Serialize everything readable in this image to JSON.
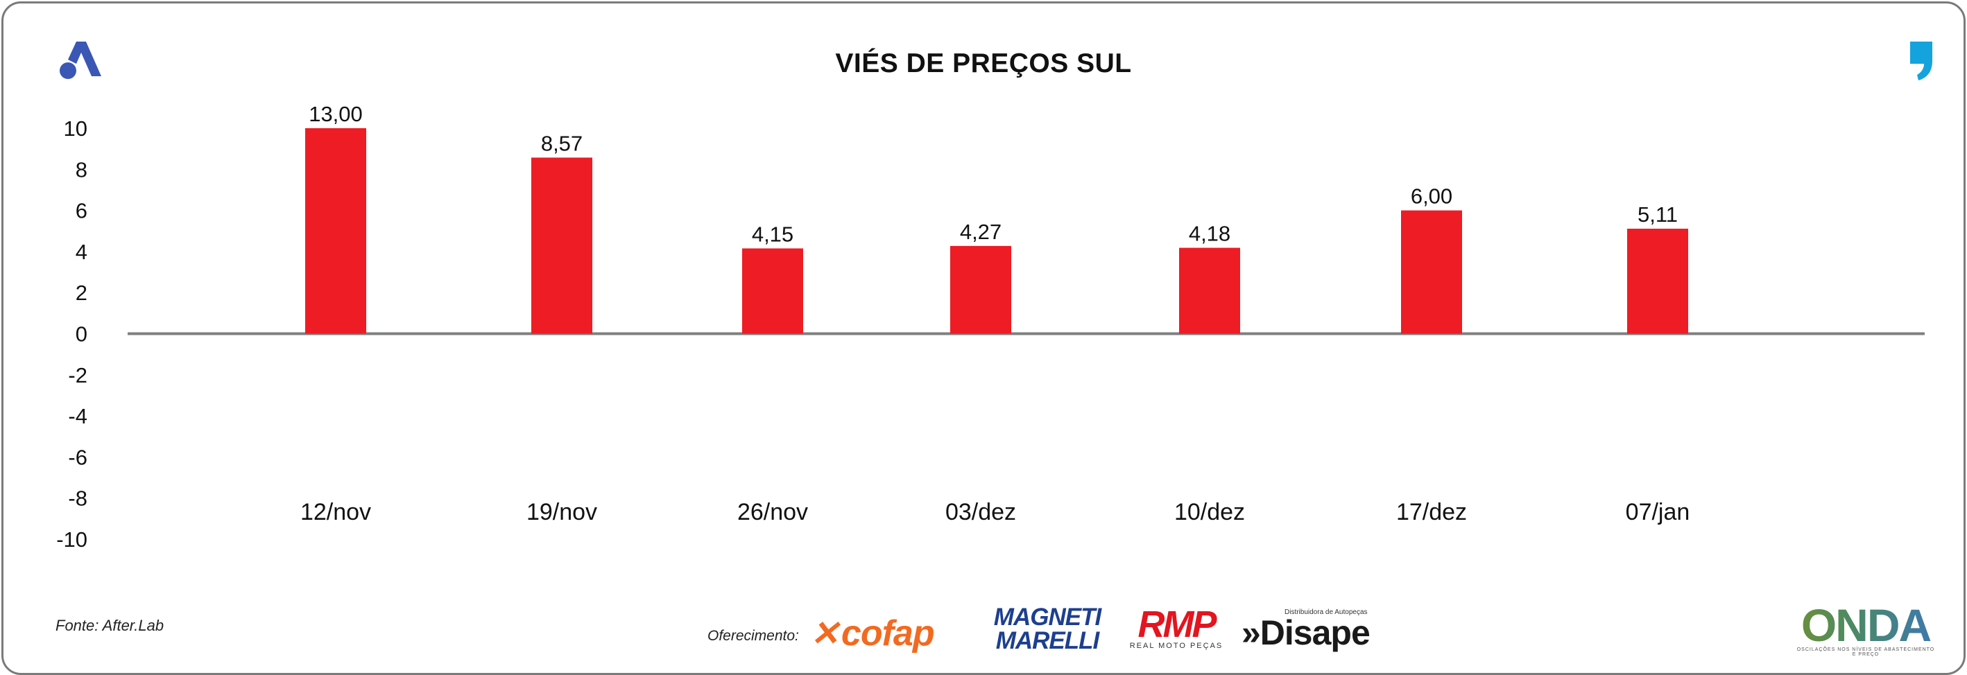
{
  "colors": {
    "bar": "#ee1c25",
    "baseline": "#7f7f7f",
    "brand_blue": "#3a57b5",
    "brand_cyan": "#14a3dd"
  },
  "icons": {
    "left": "after-lab-a-logo-icon",
    "right": "quote-comma-icon"
  },
  "footer": {
    "source": "Fonte: After.Lab",
    "sponsor_label": "Oferecimento:",
    "sponsors": {
      "cofap": "cofap",
      "magneti_line1": "MAGNETI",
      "magneti_line2": "MARELLI",
      "rmp": "RMP",
      "rmp_sub": "REAL MOTO PEÇAS",
      "disape_tag": "Distribuidora de Autopeças",
      "disape": "»Disape"
    },
    "onda": "ONDA",
    "onda_sub": "OSCILAÇÕES NOS NÍVEIS DE ABASTECIMENTO E PREÇO"
  },
  "chart_data": {
    "type": "bar",
    "title": "VIÉS DE PREÇOS SUL",
    "categories": [
      "12/nov",
      "19/nov",
      "26/nov",
      "03/dez",
      "10/dez",
      "17/dez",
      "07/jan"
    ],
    "values": [
      13.0,
      8.57,
      4.15,
      4.27,
      4.18,
      6.0,
      5.11
    ],
    "value_labels": [
      "13,00",
      "8,57",
      "4,15",
      "4,27",
      "4,18",
      "6,00",
      "5,11"
    ],
    "yticks": [
      "10",
      "8",
      "6",
      "4",
      "2",
      "0",
      "-2",
      "-4",
      "-6",
      "-8",
      "-10"
    ],
    "ylim": [
      -10,
      10
    ],
    "grid": false,
    "legend": "none"
  }
}
